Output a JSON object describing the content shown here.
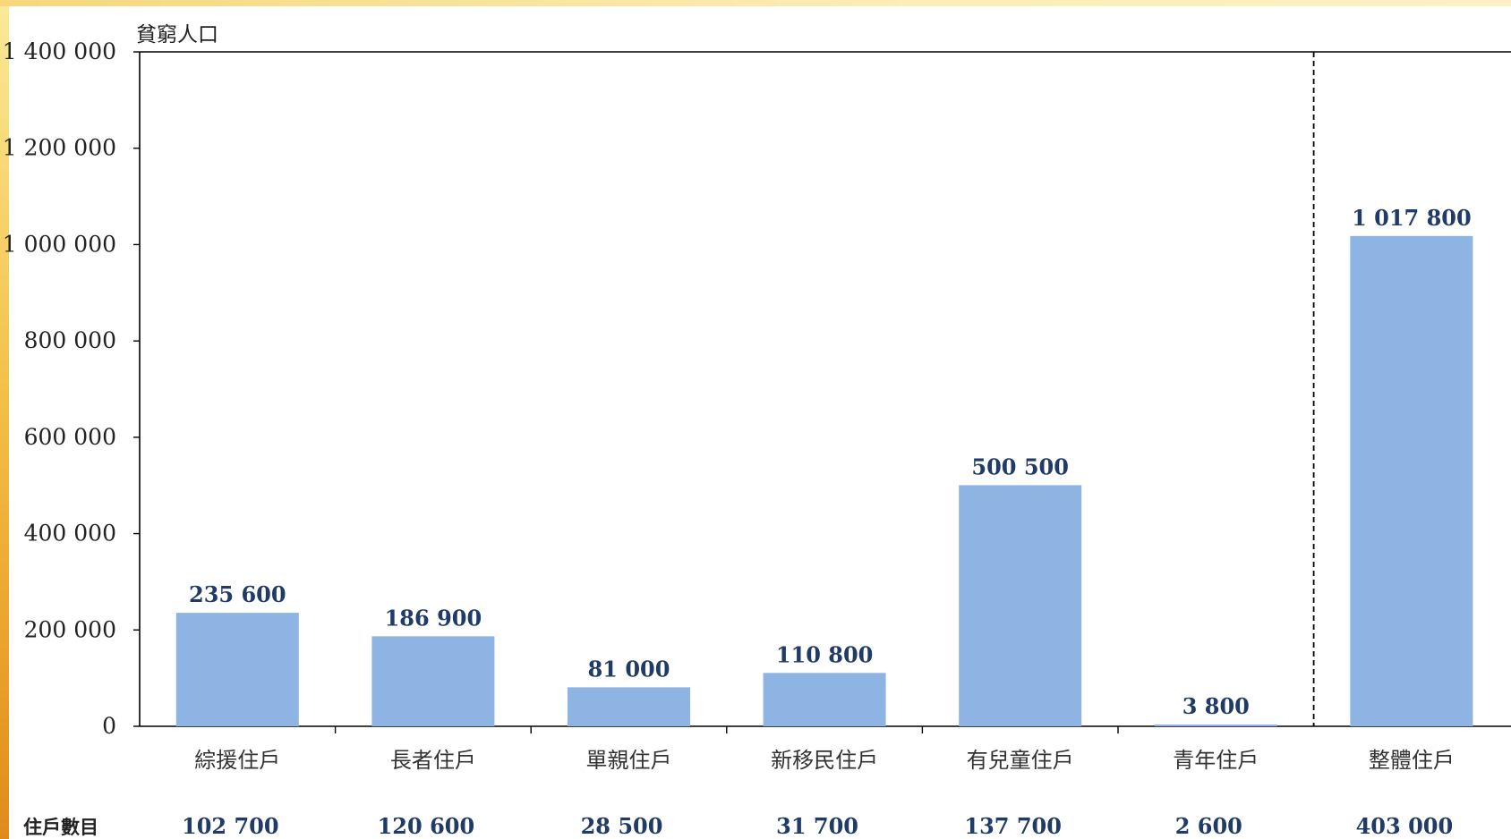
{
  "chart_data": {
    "type": "bar",
    "ylabel": "貧窮人口",
    "ylim": [
      0,
      1400000
    ],
    "yticks": [
      0,
      200000,
      400000,
      600000,
      800000,
      1000000,
      1200000,
      1400000
    ],
    "ytick_labels": [
      "0",
      "200 000",
      "400 000",
      "600 000",
      "800 000",
      "1 000 000",
      "1 200 000",
      "1 400 000"
    ],
    "categories": [
      "綜援住戶",
      "長者住戶",
      "單親住戶",
      "新移民住戶",
      "有兒童住戶",
      "青年住戶",
      "整體住戶"
    ],
    "values": [
      235600,
      186900,
      81000,
      110800,
      500500,
      3800,
      1017800
    ],
    "value_labels": [
      "235 600",
      "186 900",
      "81 000",
      "110 800",
      "500 500",
      "3 800",
      "1 017 800"
    ],
    "bar_color": "#8db4e2",
    "separator_before_category": "整體住戶",
    "grid": false,
    "household_row": {
      "title": "住戶數目",
      "values": [
        "102 700",
        "120 600",
        "28 500",
        "31 700",
        "137 700",
        "2 600",
        "403 000"
      ]
    }
  }
}
